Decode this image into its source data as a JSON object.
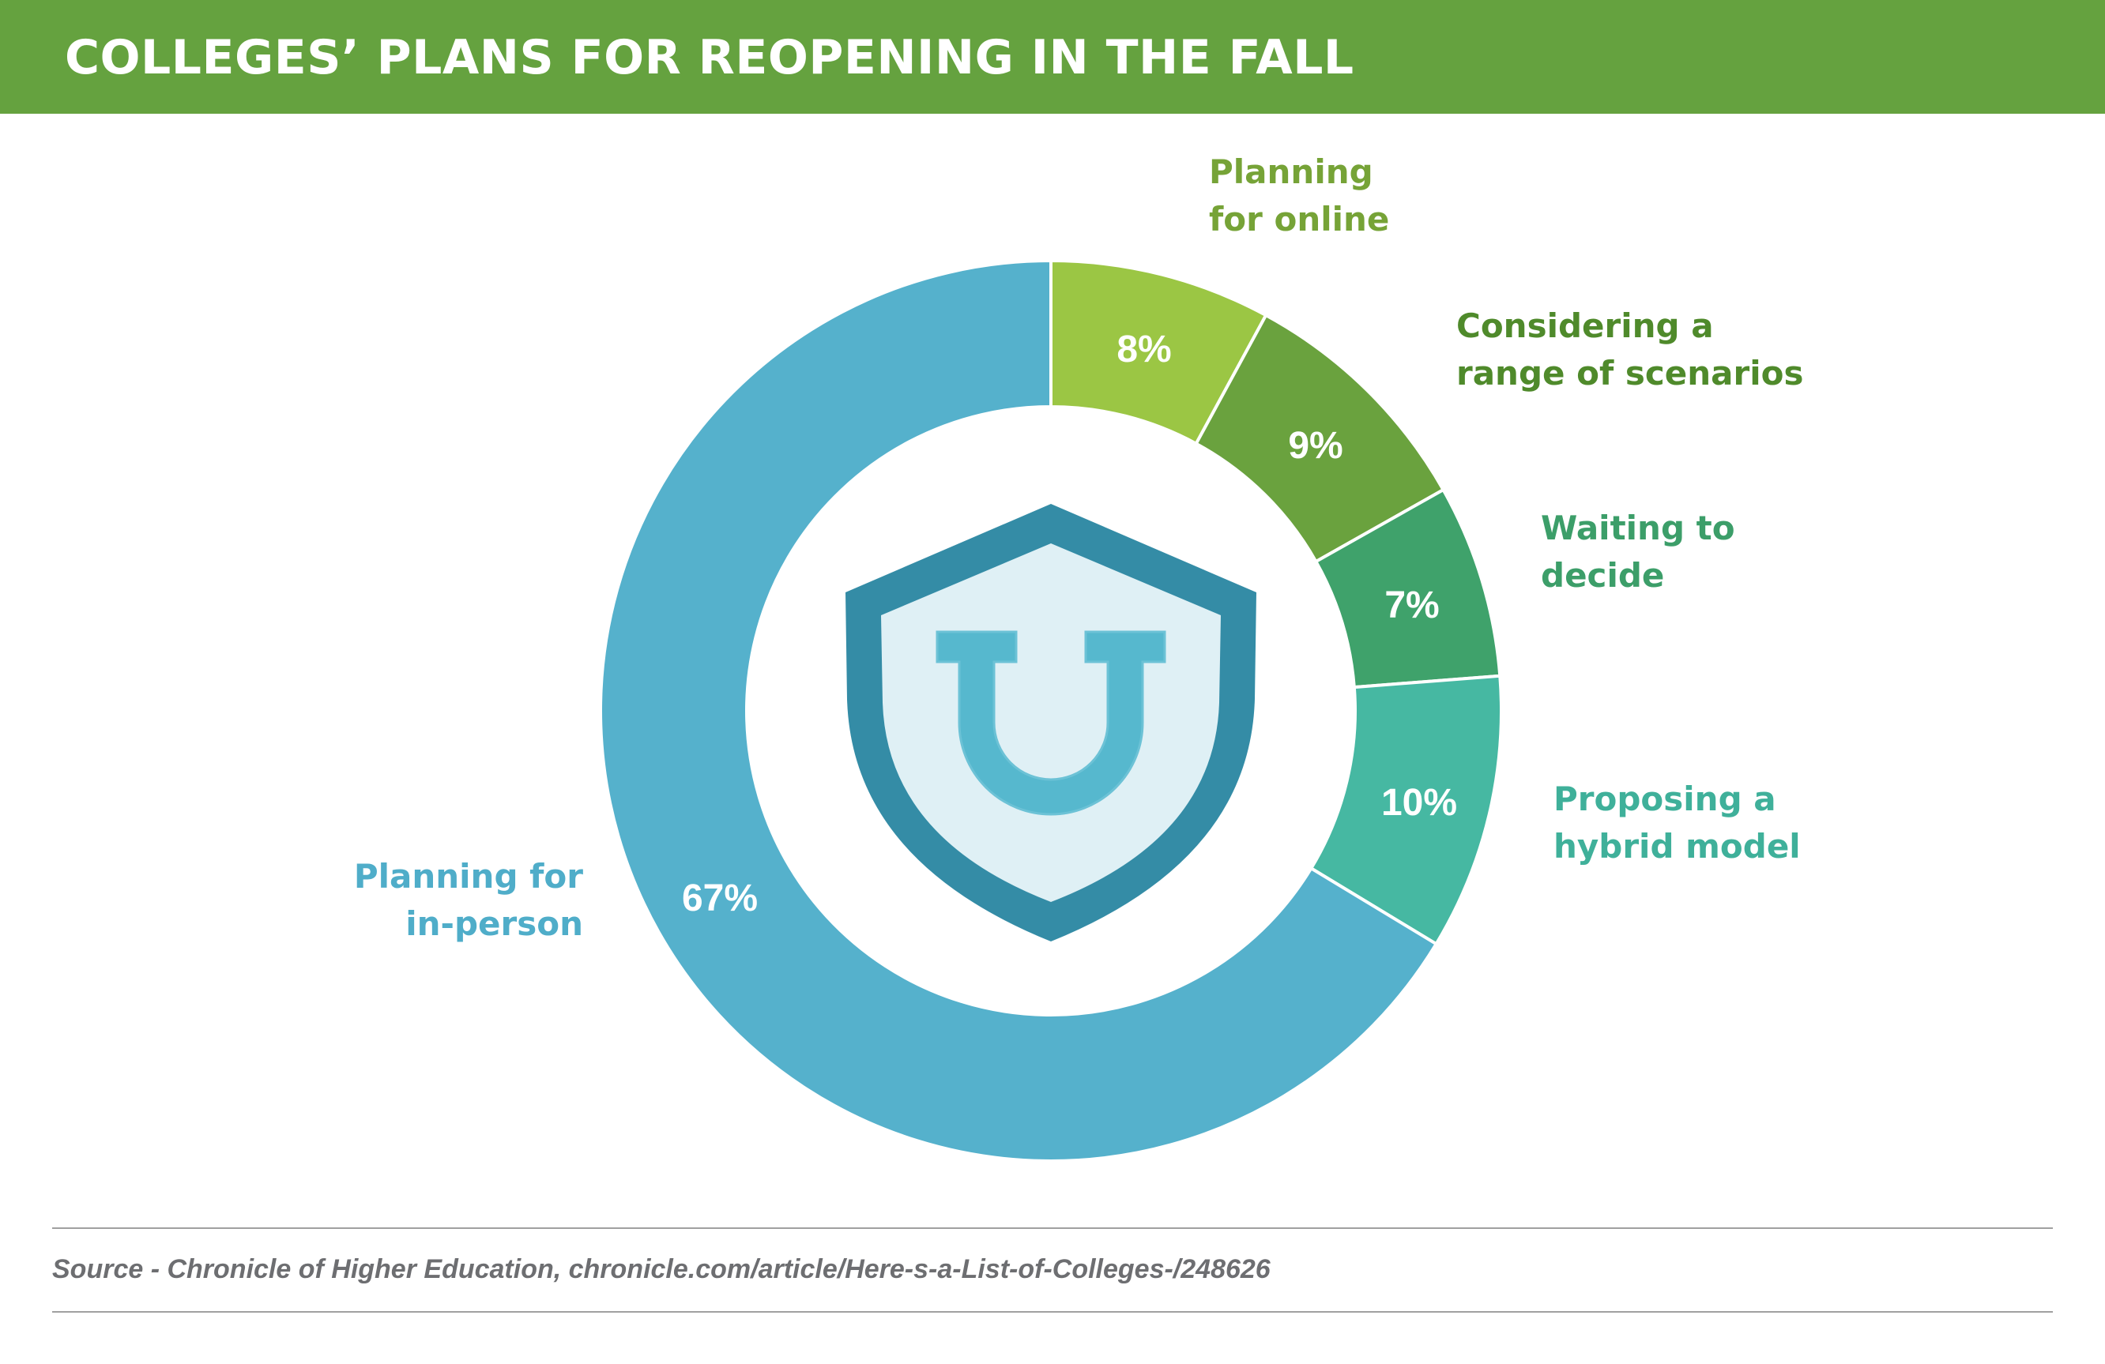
{
  "title": "COLLEGES’ PLANS FOR REOPENING IN THE FALL",
  "source": "Source - Chronicle of Higher Education, chronicle.com/article/Here-s-a-List-of-Colleges-/248626",
  "chart_data": {
    "type": "pie",
    "style": "donut",
    "unit": "%",
    "slices": [
      {
        "label_lines": [
          "Planning",
          "for online"
        ],
        "value": 8,
        "value_label": "8%",
        "color": "#9bc644",
        "label_color": "#76a337"
      },
      {
        "label_lines": [
          "Considering a",
          "range of scenarios"
        ],
        "value": 9,
        "value_label": "9%",
        "color": "#6aa23e",
        "label_color": "#4f8a2b"
      },
      {
        "label_lines": [
          "Waiting to",
          "decide"
        ],
        "value": 7,
        "value_label": "7%",
        "color": "#3fa26b",
        "label_color": "#3c9e69"
      },
      {
        "label_lines": [
          "Proposing a",
          "hybrid model"
        ],
        "value": 10,
        "value_label": "10%",
        "color": "#46b8a2",
        "label_color": "#3fb09a"
      },
      {
        "label_lines": [
          "Planning for",
          "in-person"
        ],
        "value": 67,
        "value_label": "67%",
        "color": "#55b1cc",
        "label_color": "#4fadc9"
      }
    ]
  },
  "icon": {
    "name": "shield-u-icon",
    "outer_color": "#348ca6",
    "inner_color": "#dff0f5",
    "u_color": "#56b8ce"
  },
  "colors": {
    "header": "#65a23f",
    "value_text": "#ffffff",
    "divider": "#a0a0a0",
    "source_text": "#6d6e71"
  }
}
